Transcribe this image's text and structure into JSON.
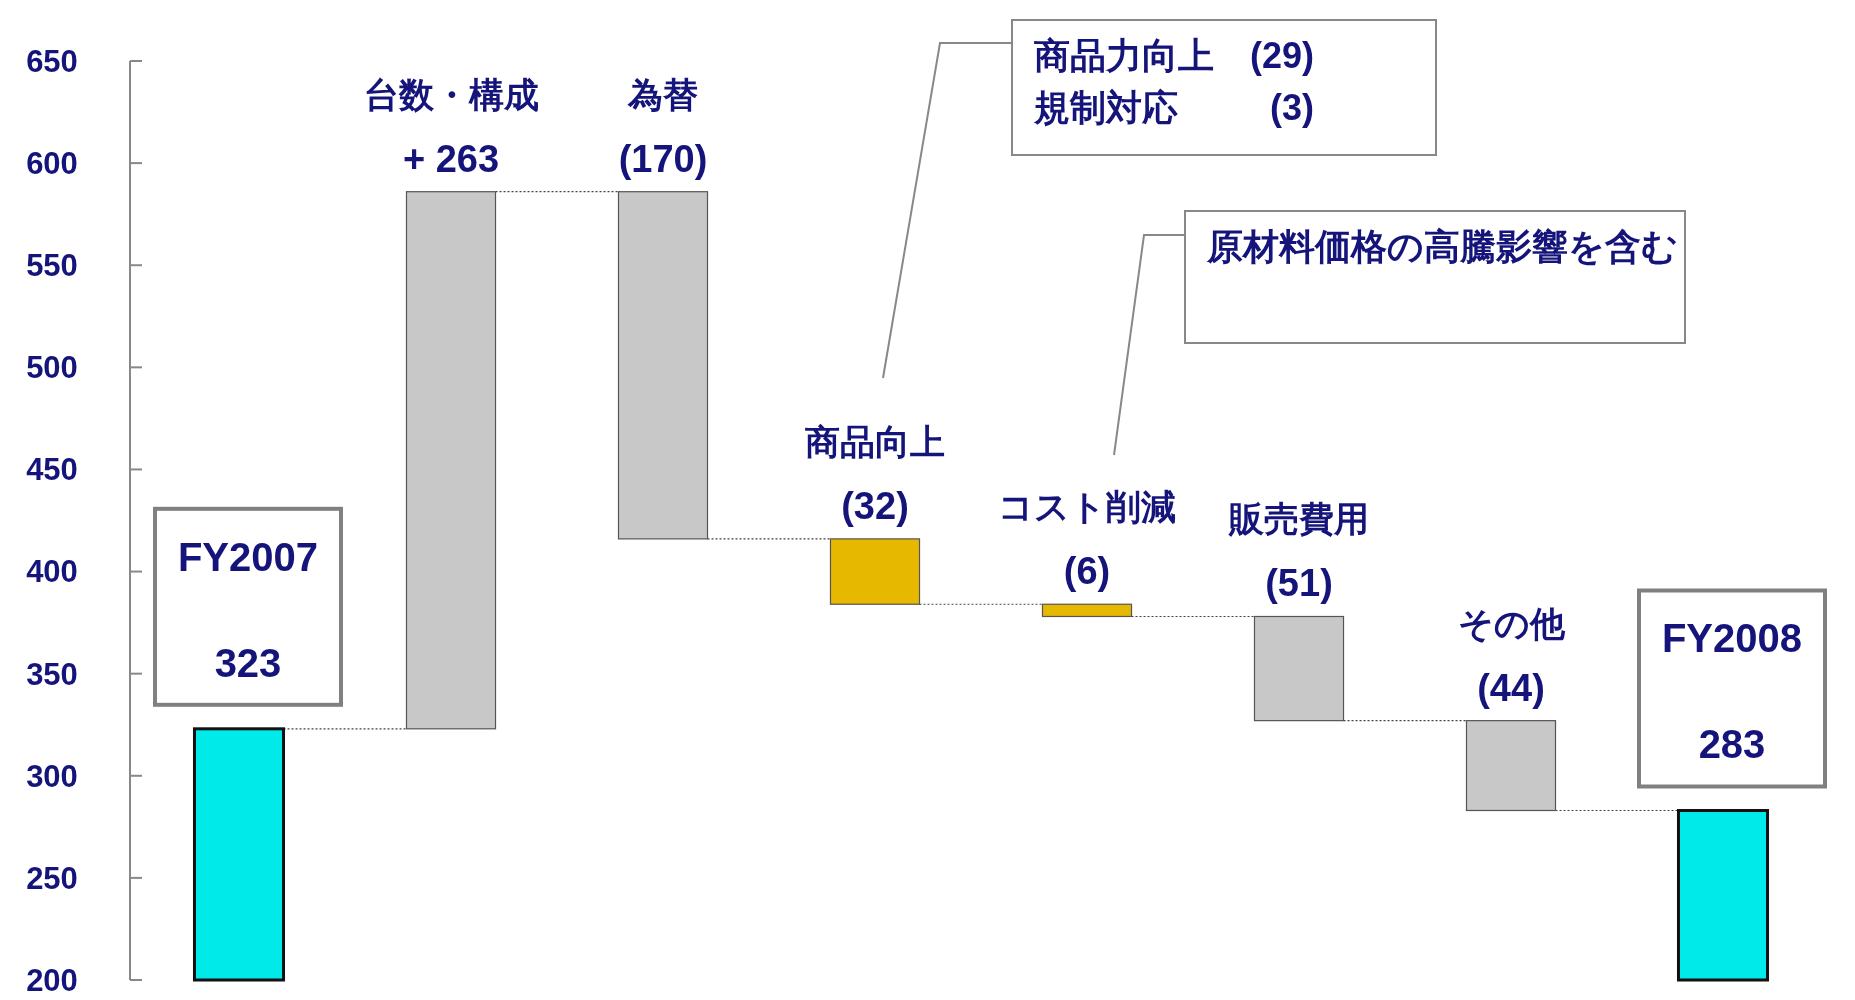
{
  "chart_data": {
    "type": "bar",
    "categories": [
      "FY2007",
      "台数・構成",
      "為替",
      "商品向上",
      "コスト削減",
      "販売費用",
      "その他",
      "FY2008"
    ],
    "values": [
      323,
      263,
      -170,
      -32,
      -6,
      -51,
      -44,
      283
    ],
    "base": [
      null,
      323,
      586,
      416,
      384,
      378,
      327,
      null
    ],
    "value_labels": [
      "323",
      "+ 263",
      "(170)",
      "(32)",
      "(6)",
      "(51)",
      "(44)",
      "283"
    ],
    "colors": [
      "#00eaea",
      "#c8c8c8",
      "#c8c8c8",
      "#e6b800",
      "#e6b800",
      "#c8c8c8",
      "#c8c8c8",
      "#00eaea"
    ],
    "ylim": [
      200,
      650
    ],
    "yticks": [
      200,
      250,
      300,
      350,
      400,
      450,
      500,
      550,
      600,
      650
    ],
    "annotations": [
      "商品力向上　(29)\n規制対応　　  (3)",
      "原材料価格の高騰影響を含む"
    ]
  }
}
